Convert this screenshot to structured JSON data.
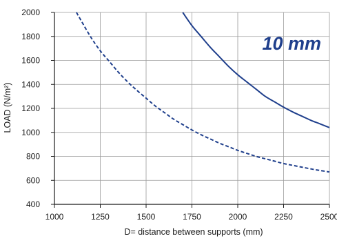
{
  "chart_data": {
    "type": "line",
    "title": "",
    "xlabel": "D= distance between supports (mm)",
    "ylabel": "LOAD (N/m²)",
    "xlim": [
      1000,
      2500
    ],
    "ylim": [
      400,
      2000
    ],
    "xticks": [
      1000,
      1250,
      1500,
      1750,
      2000,
      2250,
      2500
    ],
    "yticks": [
      400,
      600,
      800,
      1000,
      1200,
      1400,
      1600,
      1800,
      2000
    ],
    "grid": true,
    "annotation": "10 mm",
    "series": [
      {
        "style": "solid",
        "color": "#1f3f8c",
        "x": [
          1700,
          1750,
          1800,
          1850,
          1900,
          1950,
          2000,
          2050,
          2100,
          2150,
          2200,
          2250,
          2300,
          2350,
          2400,
          2450,
          2500
        ],
        "y": [
          2000,
          1890,
          1800,
          1710,
          1630,
          1550,
          1480,
          1420,
          1360,
          1300,
          1255,
          1210,
          1170,
          1135,
          1100,
          1070,
          1040
        ]
      },
      {
        "style": "dashed",
        "color": "#1f3f8c",
        "x": [
          1120,
          1150,
          1200,
          1250,
          1300,
          1350,
          1400,
          1450,
          1500,
          1550,
          1600,
          1650,
          1700,
          1750,
          1800,
          1850,
          1900,
          1950,
          2000,
          2050,
          2100,
          2150,
          2200,
          2250,
          2300,
          2350,
          2400,
          2450,
          2500
        ],
        "y": [
          2000,
          1920,
          1790,
          1680,
          1590,
          1500,
          1420,
          1350,
          1285,
          1220,
          1165,
          1110,
          1065,
          1020,
          980,
          945,
          910,
          880,
          850,
          825,
          800,
          780,
          760,
          740,
          725,
          710,
          695,
          682,
          670
        ]
      }
    ]
  }
}
